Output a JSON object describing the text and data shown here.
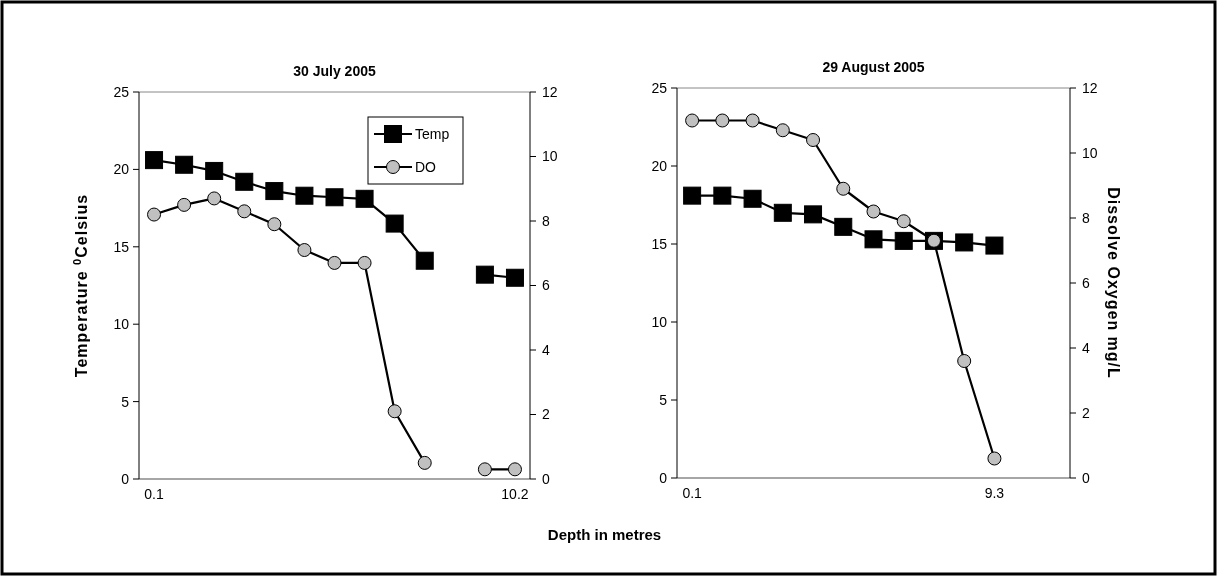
{
  "chart_data": [
    {
      "type": "line",
      "title": "30 July 2005",
      "xlabel": "Depth in metres",
      "ylabel": "Temperature $^{0}$Celsius",
      "categories": [
        "0.1",
        null,
        null,
        null,
        null,
        null,
        null,
        null,
        null,
        null,
        null,
        null,
        "10.2"
      ],
      "series": [
        {
          "name": "Temp",
          "color": "#000000",
          "marker": "square",
          "values": [
            20.6,
            20.3,
            19.9,
            19.2,
            18.6,
            18.3,
            18.2,
            18.1,
            16.5,
            14.1,
            null,
            13.2,
            13.0
          ]
        },
        {
          "name": "DO",
          "color": "#c0c0c0",
          "marker": "circle",
          "axis": "y2",
          "values": [
            8.2,
            8.5,
            8.7,
            8.3,
            7.9,
            7.1,
            6.7,
            6.7,
            2.1,
            0.5,
            null,
            0.3,
            0.3
          ]
        }
      ],
      "ylim": [
        0,
        25
      ],
      "yticks": [
        0,
        5,
        10,
        15,
        20,
        25
      ],
      "y2lim": [
        0,
        12
      ],
      "y2ticks": [
        0,
        2,
        4,
        6,
        8,
        10,
        12
      ],
      "legend": "top right",
      "grid": false
    },
    {
      "type": "line",
      "title": "29 August 2005",
      "y2label": "Dissolve Oxygen mg/L",
      "categories": [
        "0.1",
        null,
        null,
        null,
        null,
        null,
        null,
        null,
        null,
        null,
        "9.3",
        null,
        null
      ],
      "series": [
        {
          "color": "#000000",
          "marker": "square",
          "values": [
            18.1,
            18.1,
            17.9,
            17.0,
            16.9,
            16.1,
            15.3,
            15.2,
            15.2,
            15.1,
            14.9,
            null,
            null
          ]
        },
        {
          "color": "#c0c0c0",
          "marker": "circle",
          "axis": "y2",
          "values": [
            11.0,
            11.0,
            11.0,
            10.7,
            10.4,
            8.9,
            8.2,
            7.9,
            7.3,
            3.6,
            0.6,
            null,
            null
          ]
        }
      ],
      "ylim": [
        0,
        25
      ],
      "yticks": [
        0,
        5,
        10,
        15,
        20,
        25
      ],
      "y2lim": [
        0,
        12
      ],
      "y2ticks": [
        0,
        2,
        4,
        6,
        8,
        10,
        12
      ],
      "legend": false,
      "grid": false
    }
  ]
}
